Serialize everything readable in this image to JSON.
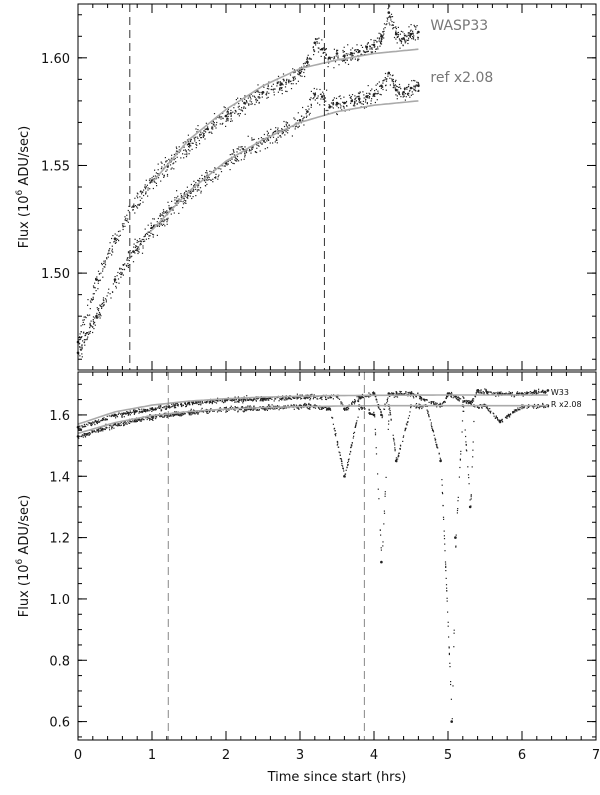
{
  "figure": {
    "x_axis_title": "Time since start (hrs)"
  },
  "chart_data": [
    {
      "type": "scatter",
      "panel": "top",
      "xlabel": "",
      "ylabel_main": "Flux (10",
      "ylabel_sup": "6",
      "ylabel_tail": " ADU/sec)",
      "xlim": [
        0,
        7
      ],
      "ylim": [
        1.455,
        1.625
      ],
      "yticks": [
        1.5,
        1.55,
        1.6
      ],
      "ytick_labels": [
        "1.50",
        "1.55",
        "1.60"
      ],
      "xticks": [
        0,
        1,
        2,
        3,
        4,
        5,
        6,
        7
      ],
      "vlines": [
        0.7,
        3.33
      ],
      "series": [
        {
          "name": "WASP33",
          "color": "#222222",
          "x": [
            0.0,
            0.25,
            0.5,
            0.75,
            1.0,
            1.25,
            1.5,
            1.75,
            2.0,
            2.25,
            2.5,
            2.75,
            3.0,
            3.1,
            3.2,
            3.3,
            3.4,
            3.5,
            3.6,
            3.7,
            3.8,
            3.9,
            4.0,
            4.1,
            4.2,
            4.3,
            4.4,
            4.5,
            4.6
          ],
          "y": [
            1.468,
            1.497,
            1.516,
            1.531,
            1.543,
            1.552,
            1.56,
            1.567,
            1.573,
            1.579,
            1.584,
            1.588,
            1.593,
            1.598,
            1.607,
            1.604,
            1.6,
            1.602,
            1.601,
            1.602,
            1.603,
            1.605,
            1.606,
            1.61,
            1.621,
            1.611,
            1.609,
            1.611,
            1.612
          ]
        },
        {
          "name": "ref x2.08",
          "color": "#222222",
          "x": [
            0.0,
            0.25,
            0.5,
            0.75,
            1.0,
            1.25,
            1.5,
            1.75,
            2.0,
            2.25,
            2.5,
            2.75,
            3.0,
            3.1,
            3.2,
            3.3,
            3.4,
            3.5,
            3.6,
            3.7,
            3.8,
            3.9,
            4.0,
            4.1,
            4.2,
            4.3,
            4.4,
            4.5,
            4.6
          ],
          "y": [
            1.463,
            1.48,
            1.497,
            1.51,
            1.521,
            1.53,
            1.538,
            1.545,
            1.551,
            1.557,
            1.562,
            1.566,
            1.571,
            1.575,
            1.583,
            1.582,
            1.577,
            1.579,
            1.579,
            1.58,
            1.581,
            1.582,
            1.583,
            1.587,
            1.593,
            1.585,
            1.584,
            1.586,
            1.587
          ]
        }
      ],
      "fits": [
        {
          "color": "#aaaaaa",
          "x": [
            1.0,
            1.5,
            2.0,
            2.5,
            3.0,
            3.5,
            4.0,
            4.3,
            4.6
          ],
          "y": [
            1.542,
            1.562,
            1.576,
            1.587,
            1.595,
            1.599,
            1.602,
            1.603,
            1.604
          ]
        },
        {
          "color": "#aaaaaa",
          "x": [
            1.0,
            1.5,
            2.0,
            2.5,
            3.0,
            3.5,
            4.0,
            4.3,
            4.6
          ],
          "y": [
            1.52,
            1.538,
            1.552,
            1.562,
            1.57,
            1.575,
            1.578,
            1.579,
            1.58
          ]
        }
      ],
      "legend": [
        {
          "label": "WASP33",
          "y": 1.611
        },
        {
          "label": "ref x2.08",
          "y": 1.587
        }
      ]
    },
    {
      "type": "scatter",
      "panel": "bottom",
      "xlabel": "Time since start (hrs)",
      "ylabel_main": "Flux (10",
      "ylabel_sup": "6",
      "ylabel_tail": " ADU/sec)",
      "xlim": [
        0,
        7
      ],
      "ylim": [
        0.54,
        1.74
      ],
      "yticks": [
        0.6,
        0.8,
        1.0,
        1.2,
        1.4,
        1.6
      ],
      "ytick_labels": [
        "0.6",
        "0.8",
        "1.0",
        "1.2",
        "1.4",
        "1.6"
      ],
      "xticks": [
        0,
        1,
        2,
        3,
        4,
        5,
        6,
        7
      ],
      "xtick_labels": [
        "0",
        "1",
        "2",
        "3",
        "4",
        "5",
        "6",
        "7"
      ],
      "vlines": [
        1.22,
        3.87
      ],
      "series": [
        {
          "name": "W33",
          "color": "#222222",
          "x": [
            0.0,
            0.5,
            1.0,
            1.5,
            2.0,
            2.5,
            3.0,
            3.5,
            3.6,
            3.8,
            4.0,
            4.1,
            4.2,
            4.5,
            4.9,
            5.0,
            5.1,
            5.3,
            5.4,
            5.7,
            6.0,
            6.35
          ],
          "y": [
            1.56,
            1.6,
            1.62,
            1.64,
            1.65,
            1.655,
            1.66,
            1.66,
            1.62,
            1.66,
            1.67,
            1.6,
            1.67,
            1.67,
            1.63,
            1.67,
            1.66,
            1.64,
            1.68,
            1.67,
            1.67,
            1.68
          ]
        },
        {
          "name": "R x2.08",
          "color": "#222222",
          "x": [
            0.0,
            0.5,
            1.0,
            1.5,
            2.0,
            2.5,
            3.0,
            3.2,
            3.4,
            3.6,
            3.8,
            4.0,
            4.1,
            4.2,
            4.3,
            4.5,
            4.7,
            4.9,
            5.05,
            5.1,
            5.2,
            5.3,
            5.35,
            5.5,
            5.7,
            6.0,
            6.35
          ],
          "y": [
            1.53,
            1.57,
            1.595,
            1.61,
            1.62,
            1.625,
            1.63,
            1.63,
            1.62,
            1.4,
            1.63,
            1.6,
            1.12,
            1.63,
            1.45,
            1.63,
            1.63,
            1.45,
            0.6,
            1.2,
            1.63,
            1.3,
            1.63,
            1.63,
            1.58,
            1.63,
            1.63
          ]
        }
      ],
      "fits": [
        {
          "color": "#aaaaaa",
          "x": [
            0.0,
            0.5,
            1.0,
            1.5,
            2.0,
            2.5,
            3.0,
            3.5,
            4.0,
            5.0,
            6.35
          ],
          "y": [
            1.57,
            1.61,
            1.632,
            1.645,
            1.653,
            1.658,
            1.661,
            1.663,
            1.664,
            1.665,
            1.665
          ]
        },
        {
          "color": "#aaaaaa",
          "x": [
            0.0,
            0.5,
            1.0,
            1.5,
            2.0,
            2.5,
            3.0,
            3.5,
            4.0,
            5.0,
            6.35
          ],
          "y": [
            1.54,
            1.575,
            1.598,
            1.611,
            1.619,
            1.624,
            1.627,
            1.629,
            1.63,
            1.63,
            1.63
          ]
        }
      ],
      "legend": [
        {
          "label": "W33",
          "y": 1.675
        },
        {
          "label": "R x2.08",
          "y": 1.635
        }
      ]
    }
  ]
}
